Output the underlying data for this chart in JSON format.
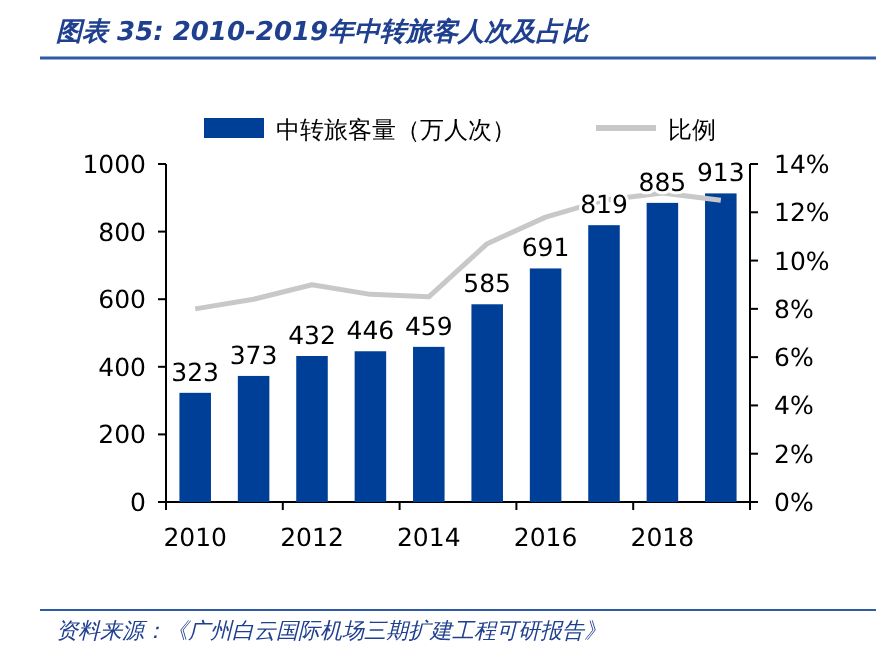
{
  "chart_data": {
    "type": "bar",
    "title": "图表 35: 2010-2019年中转旅客人次及占比",
    "categories": [
      "2010",
      null,
      "2012",
      null,
      "2014",
      null,
      "2016",
      null,
      "2018",
      null
    ],
    "series": [
      {
        "name": "中转旅客量（万人次）",
        "color": "#003f98",
        "values": [
          323,
          373,
          432,
          446,
          459,
          585,
          691,
          819,
          885,
          913
        ],
        "value_labels": [
          "323",
          "373",
          "432",
          "446",
          "459",
          "585",
          "691",
          "819",
          "885",
          "913"
        ]
      },
      {
        "name": "比例",
        "type": "line",
        "axis": "y2",
        "color": "#c8c8c8",
        "values": [
          8.0,
          8.4,
          9.0,
          8.6,
          8.5,
          10.7,
          11.8,
          12.5,
          12.8,
          12.5
        ]
      }
    ],
    "ylim": [
      0,
      1000
    ],
    "yticks": [
      0,
      200,
      400,
      600,
      800,
      1000
    ],
    "y2lim": [
      0,
      14
    ],
    "y2ticks": [
      {
        "value": 0,
        "label": "0%"
      },
      {
        "value": 2,
        "label": "2%"
      },
      {
        "value": 4,
        "label": "4%"
      },
      {
        "value": 6,
        "label": "6%"
      },
      {
        "value": 8,
        "label": "8%"
      },
      {
        "value": 10,
        "label": "10%"
      },
      {
        "value": 12,
        "label": "12%"
      },
      {
        "value": 14,
        "label": "14%"
      }
    ],
    "legend": "top",
    "grid": false,
    "annotations": [
      "资料来源：《广州白云国际机场三期扩建工程可研报告》"
    ]
  }
}
